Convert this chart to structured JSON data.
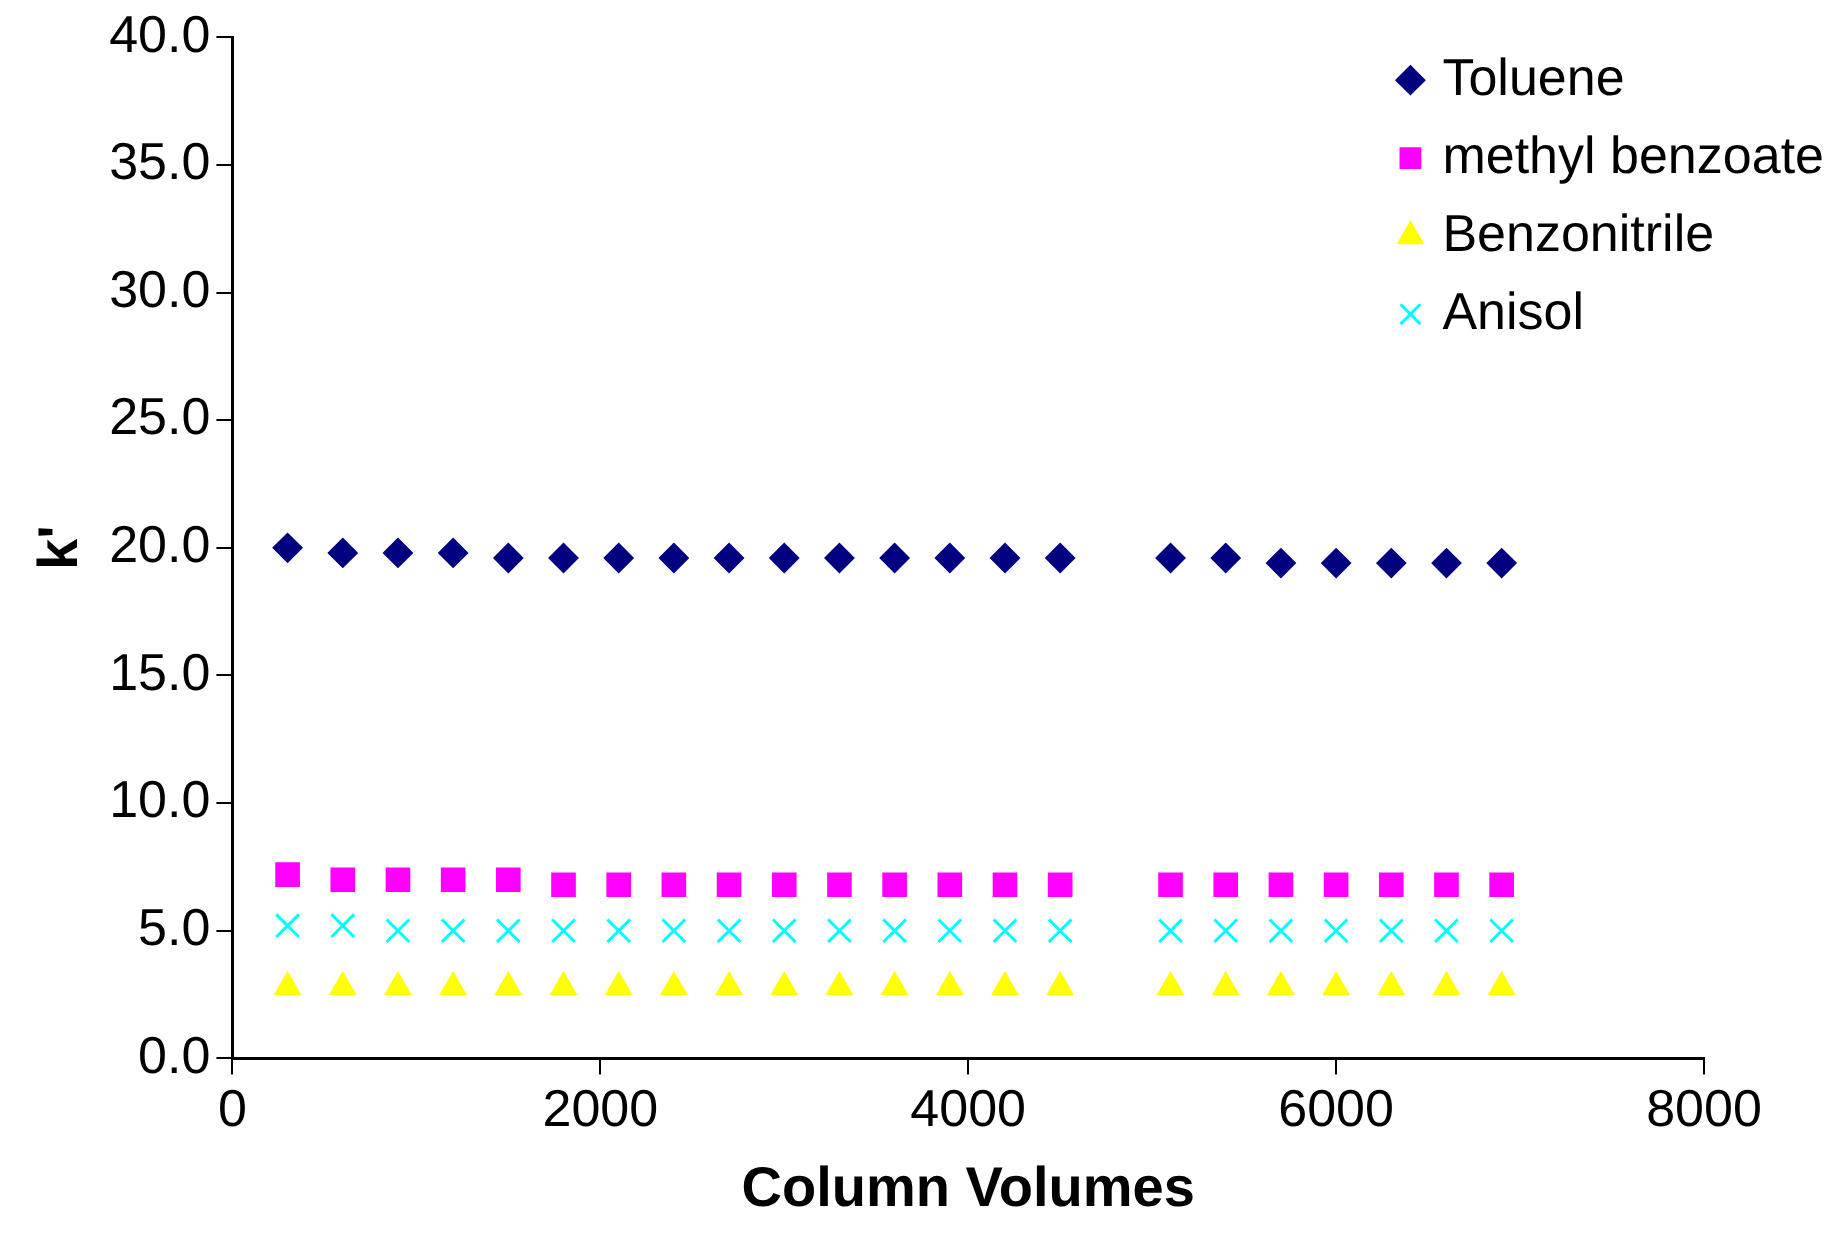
{
  "chart_data": {
    "type": "scatter",
    "xlabel": "Column Volumes",
    "ylabel": "k'",
    "x": [
      300,
      600,
      900,
      1200,
      1500,
      1800,
      2100,
      2400,
      2700,
      3000,
      3300,
      3600,
      3900,
      4200,
      4500,
      5100,
      5400,
      5700,
      6000,
      6300,
      6600,
      6900
    ],
    "series": [
      {
        "name": "Toluene",
        "color": "#000080",
        "marker": "diamond",
        "values": [
          20.0,
          19.8,
          19.8,
          19.8,
          19.6,
          19.6,
          19.6,
          19.6,
          19.6,
          19.6,
          19.6,
          19.6,
          19.6,
          19.6,
          19.6,
          19.6,
          19.6,
          19.4,
          19.4,
          19.4,
          19.4,
          19.4
        ]
      },
      {
        "name": "methyl benzoate",
        "color": "#ff00ff",
        "marker": "square",
        "values": [
          7.2,
          7.0,
          7.0,
          7.0,
          7.0,
          6.8,
          6.8,
          6.8,
          6.8,
          6.8,
          6.8,
          6.8,
          6.8,
          6.8,
          6.8,
          6.8,
          6.8,
          6.8,
          6.8,
          6.8,
          6.8,
          6.8
        ]
      },
      {
        "name": "Benzonitrile",
        "color": "#ffff00",
        "marker": "triangle",
        "values": [
          2.8,
          2.8,
          2.8,
          2.8,
          2.8,
          2.8,
          2.8,
          2.8,
          2.8,
          2.8,
          2.8,
          2.8,
          2.8,
          2.8,
          2.8,
          2.8,
          2.8,
          2.8,
          2.8,
          2.8,
          2.8,
          2.8
        ]
      },
      {
        "name": "Anisol",
        "color": "#00ffff",
        "marker": "cross",
        "values": [
          5.2,
          5.2,
          5.0,
          5.0,
          5.0,
          5.0,
          5.0,
          5.0,
          5.0,
          5.0,
          5.0,
          5.0,
          5.0,
          5.0,
          5.0,
          5.0,
          5.0,
          5.0,
          5.0,
          5.0,
          5.0,
          5.0
        ]
      }
    ],
    "xlim": [
      0,
      8000
    ],
    "xticks": [
      0,
      2000,
      4000,
      6000,
      8000
    ],
    "ylim": [
      0,
      40
    ],
    "yticks": [
      {
        "value": 0,
        "label": "0.0"
      },
      {
        "value": 5,
        "label": "5.0"
      },
      {
        "value": 10,
        "label": "10.0"
      },
      {
        "value": 15,
        "label": "15.0"
      },
      {
        "value": 20,
        "label": "20.0"
      },
      {
        "value": 25,
        "label": "25.0"
      },
      {
        "value": 30,
        "label": "30.0"
      },
      {
        "value": 35,
        "label": "35.0"
      },
      {
        "value": 40,
        "label": "40.0"
      }
    ],
    "grid": false,
    "legend": "top right"
  }
}
